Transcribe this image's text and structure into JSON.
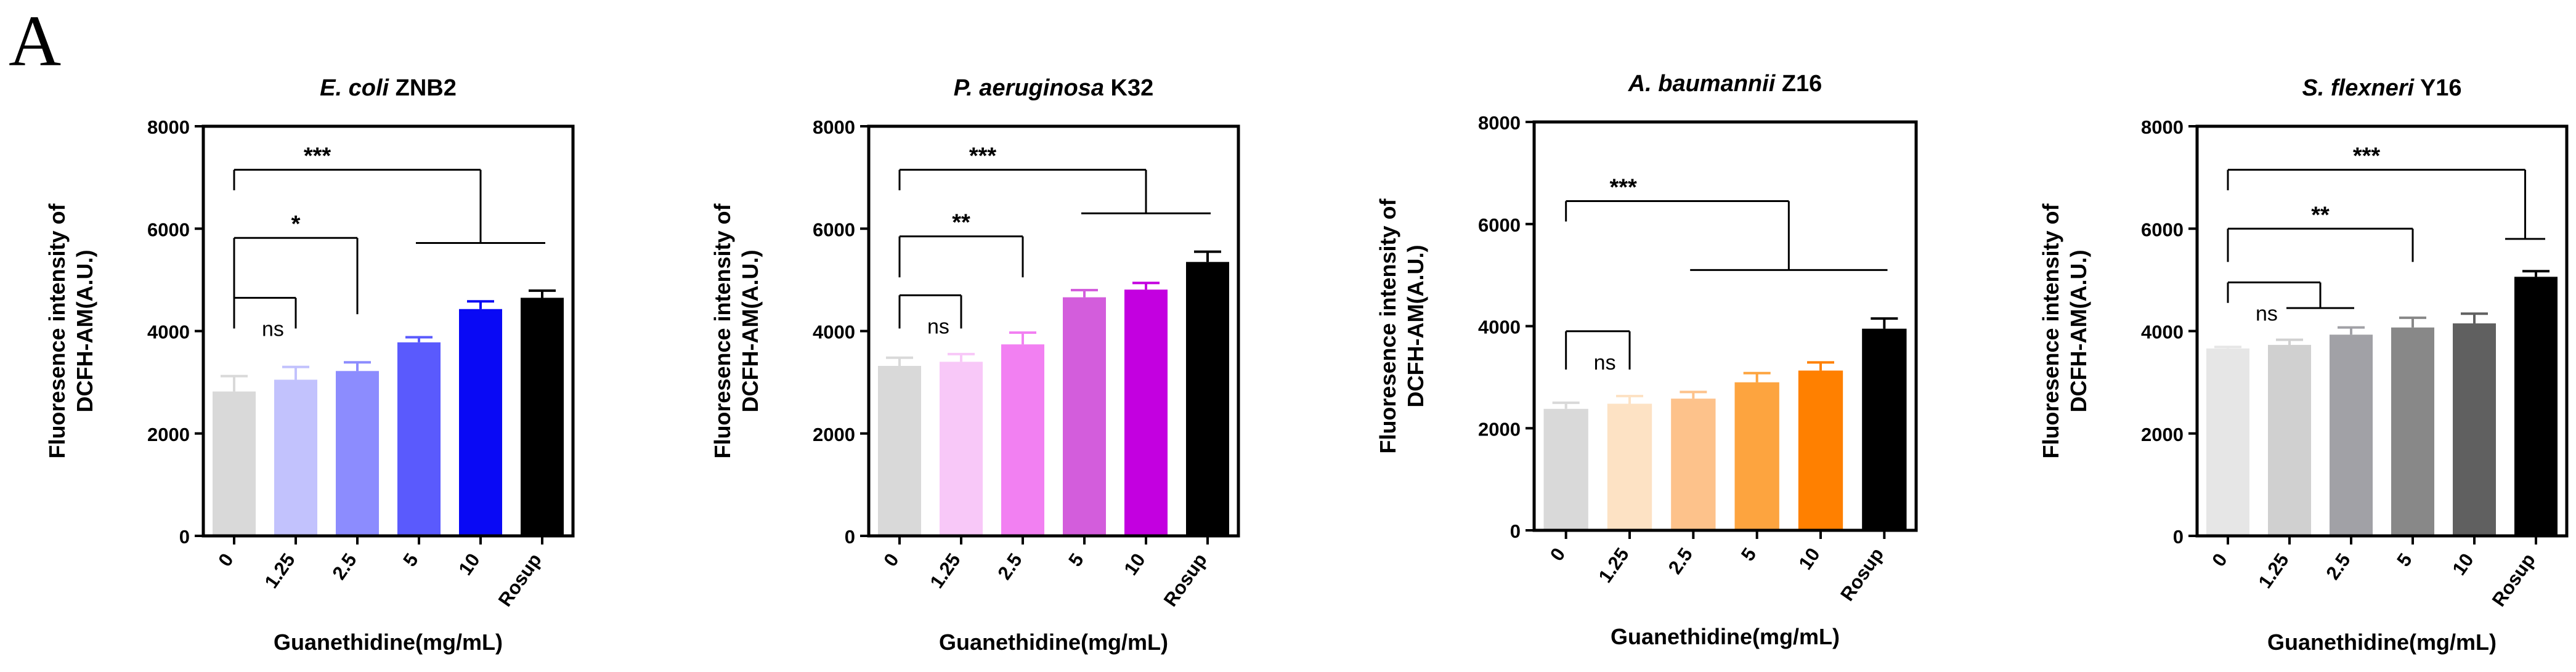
{
  "figure": {
    "panel_label": "A"
  },
  "chart_data": [
    {
      "type": "bar",
      "title_italic": "E. coli",
      "title_rest": " ZNB2",
      "xlabel": "Guanethidine(mg/mL)",
      "ylabel_line1": "Fluoresence intensity of",
      "ylabel_line2": "DCFH-AM(A.U.)",
      "categories": [
        "0",
        "1.25",
        "2.5",
        "5",
        "10",
        "Rosup"
      ],
      "values": [
        2820,
        3050,
        3220,
        3780,
        4430,
        4650
      ],
      "errors": [
        300,
        250,
        170,
        100,
        150,
        140
      ],
      "colors": [
        "#d9d9d9",
        "#c2c2fd",
        "#8c8cfe",
        "#5a5afd",
        "#0909f5",
        "#000000"
      ],
      "ylim": [
        0,
        8000
      ],
      "yticks": [
        0,
        2000,
        4000,
        6000,
        8000
      ],
      "annotations": [
        {
          "label": "***",
          "kind": "span",
          "from": 0,
          "to_a": 3,
          "to_b": 5,
          "y_top": 7150,
          "y_sub": 5720
        },
        {
          "label": "*",
          "kind": "pair",
          "from": 0,
          "to": 2,
          "y_top": 5820,
          "y_drop": 4330
        },
        {
          "label": "ns",
          "kind": "pair",
          "from": 0,
          "to": 1,
          "y_top": 4650,
          "y_drop": 4050
        }
      ]
    },
    {
      "type": "bar",
      "title_italic": "P. aeruginosa",
      "title_rest": " K32",
      "xlabel": "Guanethidine(mg/mL)",
      "ylabel_line1": "Fluoresence intensity of",
      "ylabel_line2": "DCFH-AM(A.U.)",
      "categories": [
        "0",
        "1.25",
        "2.5",
        "5",
        "10",
        "Rosup"
      ],
      "values": [
        3320,
        3400,
        3740,
        4660,
        4810,
        5350
      ],
      "errors": [
        160,
        150,
        230,
        140,
        130,
        200
      ],
      "colors": [
        "#d9d9d9",
        "#f8c8f8",
        "#f280f2",
        "#d35ddc",
        "#c300e0",
        "#000000"
      ],
      "ylim": [
        0,
        8000
      ],
      "yticks": [
        0,
        2000,
        4000,
        6000,
        8000
      ],
      "annotations": [
        {
          "label": "***",
          "kind": "span",
          "from": 0,
          "to_a": 3,
          "to_b": 5,
          "y_top": 7150,
          "y_sub": 6300
        },
        {
          "label": "**",
          "kind": "pair",
          "from": 0,
          "to": 2,
          "y_top": 5850,
          "y_drop": 5050
        },
        {
          "label": "ns",
          "kind": "pair",
          "from": 0,
          "to": 1,
          "y_top": 4700,
          "y_drop": 4050
        }
      ]
    },
    {
      "type": "bar",
      "title_italic": "A. baumannii",
      "title_rest": " Z16",
      "xlabel": "Guanethidine(mg/mL)",
      "ylabel_line1": "Fluoresence intensity of",
      "ylabel_line2": "DCFH-AM(A.U.)",
      "categories": [
        "0",
        "1.25",
        "2.5",
        "5",
        "10",
        "Rosup"
      ],
      "values": [
        2380,
        2480,
        2580,
        2900,
        3130,
        3950
      ],
      "errors": [
        120,
        150,
        130,
        180,
        160,
        200
      ],
      "colors": [
        "#d9d9d9",
        "#fde2c4",
        "#fdc28b",
        "#fda43f",
        "#ff8000",
        "#000000"
      ],
      "ylim": [
        0,
        8000
      ],
      "yticks": [
        0,
        2000,
        4000,
        6000,
        8000
      ],
      "annotations": [
        {
          "label": "***",
          "kind": "span",
          "from": 0,
          "to_a": 2,
          "to_b": 5,
          "y_top": 6450,
          "y_sub": 5100
        },
        {
          "label": "ns",
          "kind": "pair",
          "from": 0,
          "to": 1,
          "y_top": 3900,
          "y_drop": 3150
        }
      ]
    },
    {
      "type": "bar",
      "title_italic": "S. flexneri",
      "title_rest": " Y16",
      "xlabel": "Guanethidine(mg/mL)",
      "ylabel_line1": "Fluoresence intensity of",
      "ylabel_line2": "DCFH-AM(A.U.)",
      "categories": [
        "0",
        "1.25",
        "2.5",
        "5",
        "10",
        "Rosup"
      ],
      "values": [
        3660,
        3730,
        3930,
        4070,
        4150,
        5060
      ],
      "errors": [
        30,
        100,
        140,
        190,
        190,
        110
      ],
      "colors": [
        "#e6e6e6",
        "#d0d0d0",
        "#a1a1a6",
        "#888888",
        "#606060",
        "#000000"
      ],
      "ylim": [
        0,
        8000
      ],
      "yticks": [
        0,
        2000,
        4000,
        6000,
        8000
      ],
      "annotations": [
        {
          "label": "***",
          "kind": "span",
          "from": 0,
          "to_a": 5,
          "to_b": 5,
          "y_top": 7150,
          "y_sub": 5800
        },
        {
          "label": "**",
          "kind": "pair",
          "from": 0,
          "to": 3,
          "y_top": 6000,
          "y_drop": 5350
        },
        {
          "label": "ns",
          "kind": "span",
          "from": 0,
          "to_a": 1,
          "to_b": 2,
          "y_top": 4950,
          "y_sub": 4450
        }
      ]
    }
  ]
}
